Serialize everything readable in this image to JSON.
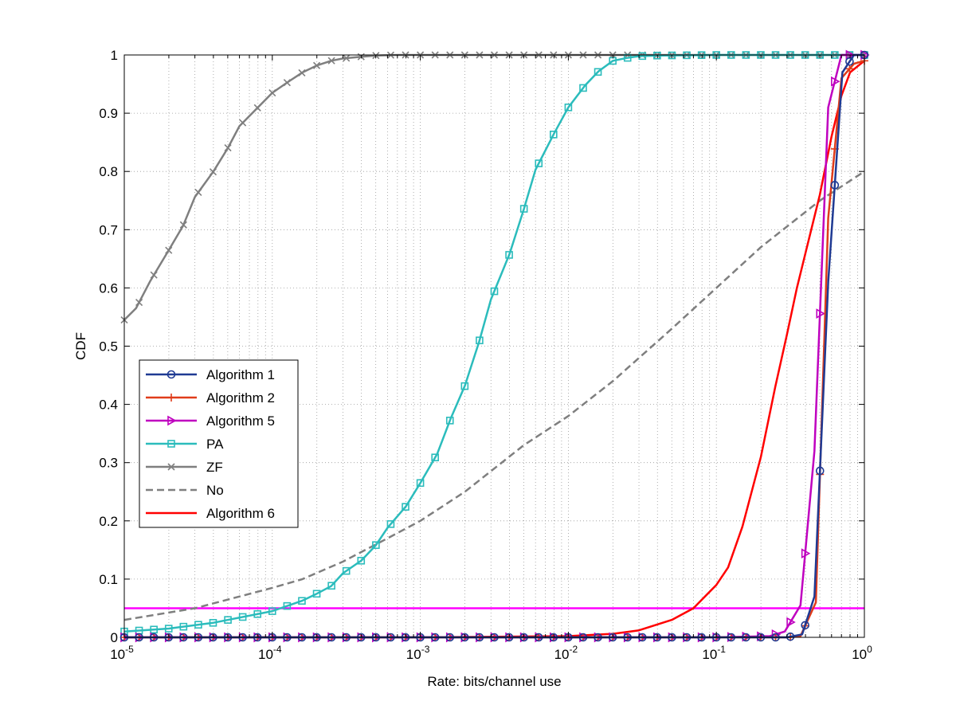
{
  "chart_data": {
    "type": "line",
    "title": "",
    "xlabel": "Rate: bits/channel use",
    "ylabel": "CDF",
    "xscale": "log",
    "xlim": [
      1e-05,
      1
    ],
    "ylim": [
      0,
      1
    ],
    "grid": "on (major and minor, dotted)",
    "legend_position": "center-left",
    "x_ticks": [
      {
        "value": 1e-05,
        "base": "10",
        "exp": "-5"
      },
      {
        "value": 0.0001,
        "base": "10",
        "exp": "-4"
      },
      {
        "value": 0.001,
        "base": "10",
        "exp": "-3"
      },
      {
        "value": 0.01,
        "base": "10",
        "exp": "-2"
      },
      {
        "value": 0.1,
        "base": "10",
        "exp": "-1"
      },
      {
        "value": 1,
        "base": "10",
        "exp": "0"
      }
    ],
    "y_ticks": [
      {
        "value": 0,
        "label": "0"
      },
      {
        "value": 0.1,
        "label": "0.1"
      },
      {
        "value": 0.2,
        "label": "0.2"
      },
      {
        "value": 0.3,
        "label": "0.3"
      },
      {
        "value": 0.4,
        "label": "0.4"
      },
      {
        "value": 0.5,
        "label": "0.5"
      },
      {
        "value": 0.6,
        "label": "0.6"
      },
      {
        "value": 0.7,
        "label": "0.7"
      },
      {
        "value": 0.8,
        "label": "0.8"
      },
      {
        "value": 0.9,
        "label": "0.9"
      },
      {
        "value": 1,
        "label": "1"
      }
    ],
    "reference_line": {
      "y": 0.05,
      "color": "#ff00ff"
    },
    "series": [
      {
        "name": "Algorithm 1",
        "color": "#1f3a93",
        "marker": "circle",
        "dashed": false,
        "x": [
          1e-05,
          0.0001,
          0.001,
          0.01,
          0.1,
          0.3,
          0.38,
          0.46,
          0.57,
          0.71,
          0.85,
          1.0
        ],
        "y": [
          0,
          0,
          0,
          0,
          0,
          0,
          0.005,
          0.07,
          0.61,
          0.97,
          1.0,
          1.0
        ]
      },
      {
        "name": "Algorithm 2",
        "color": "#e03c1a",
        "marker": "plus",
        "dashed": false,
        "x": [
          1e-05,
          0.0001,
          0.001,
          0.01,
          0.1,
          0.3,
          0.37,
          0.47,
          0.57,
          0.7,
          0.85,
          1.0
        ],
        "y": [
          0,
          0,
          0,
          0,
          0,
          0,
          0.002,
          0.06,
          0.72,
          0.96,
          0.985,
          0.99
        ]
      },
      {
        "name": "Algorithm 5",
        "color": "#bf00bf",
        "marker": "triangle-right",
        "dashed": false,
        "x": [
          1e-05,
          0.0001,
          0.001,
          0.01,
          0.1,
          0.23,
          0.29,
          0.37,
          0.46,
          0.57,
          0.7,
          0.8,
          1.0
        ],
        "y": [
          0,
          0,
          0,
          0,
          0,
          0.002,
          0.01,
          0.055,
          0.32,
          0.91,
          1.0,
          1.0,
          1.0
        ]
      },
      {
        "name": "PA",
        "color": "#2bbcbc",
        "marker": "square",
        "dashed": false,
        "x": [
          1e-05,
          2e-05,
          4e-05,
          0.0001,
          0.00016,
          0.0002,
          0.00025,
          0.0003,
          0.0004,
          0.0005,
          0.0006,
          0.0008,
          0.001,
          0.0013,
          0.0016,
          0.002,
          0.0025,
          0.003,
          0.004,
          0.005,
          0.006,
          0.008,
          0.01,
          0.013,
          0.016,
          0.02,
          0.025,
          0.03,
          0.04,
          0.1,
          1.0
        ],
        "y": [
          0.01,
          0.015,
          0.025,
          0.045,
          0.063,
          0.075,
          0.088,
          0.11,
          0.132,
          0.158,
          0.188,
          0.225,
          0.265,
          0.315,
          0.375,
          0.432,
          0.508,
          0.58,
          0.658,
          0.735,
          0.803,
          0.865,
          0.91,
          0.948,
          0.972,
          0.99,
          0.995,
          0.998,
          0.999,
          1.0,
          1.0
        ]
      },
      {
        "name": "ZF",
        "color": "#7f7f7f",
        "marker": "x",
        "dashed": false,
        "x": [
          1e-05,
          1.2e-05,
          1.5e-05,
          2e-05,
          2.5e-05,
          3e-05,
          4e-05,
          5e-05,
          6e-05,
          8e-05,
          0.0001,
          0.00013,
          0.00016,
          0.0002,
          0.00025,
          0.0003,
          0.0004,
          0.0005,
          0.0007,
          0.001,
          0.01,
          0.1,
          1.0
        ],
        "y": [
          0.545,
          0.565,
          0.612,
          0.665,
          0.707,
          0.756,
          0.8,
          0.84,
          0.878,
          0.91,
          0.935,
          0.955,
          0.97,
          0.982,
          0.99,
          0.994,
          0.997,
          0.999,
          1.0,
          1.0,
          1.0,
          1.0,
          1.0
        ]
      },
      {
        "name": "No",
        "color": "#7f7f7f",
        "marker": "none",
        "dashed": true,
        "x": [
          1e-05,
          3e-05,
          0.0001,
          0.00016,
          0.0003,
          0.0006,
          0.001,
          0.002,
          0.005,
          0.01,
          0.02,
          0.05,
          0.1,
          0.2,
          0.5,
          1.0
        ],
        "y": [
          0.03,
          0.05,
          0.085,
          0.1,
          0.13,
          0.17,
          0.2,
          0.25,
          0.33,
          0.38,
          0.44,
          0.53,
          0.6,
          0.67,
          0.75,
          0.8
        ]
      },
      {
        "name": "Algorithm 6",
        "color": "#ff0000",
        "marker": "none",
        "dashed": false,
        "x": [
          1e-05,
          0.001,
          0.01,
          0.02,
          0.03,
          0.05,
          0.07,
          0.1,
          0.12,
          0.15,
          0.2,
          0.25,
          0.3,
          0.35,
          0.4,
          0.5,
          0.6,
          0.7,
          0.8,
          1.0
        ],
        "y": [
          0,
          0,
          0.002,
          0.006,
          0.012,
          0.03,
          0.05,
          0.09,
          0.12,
          0.19,
          0.31,
          0.43,
          0.52,
          0.6,
          0.66,
          0.76,
          0.86,
          0.93,
          0.97,
          0.99
        ]
      }
    ]
  }
}
